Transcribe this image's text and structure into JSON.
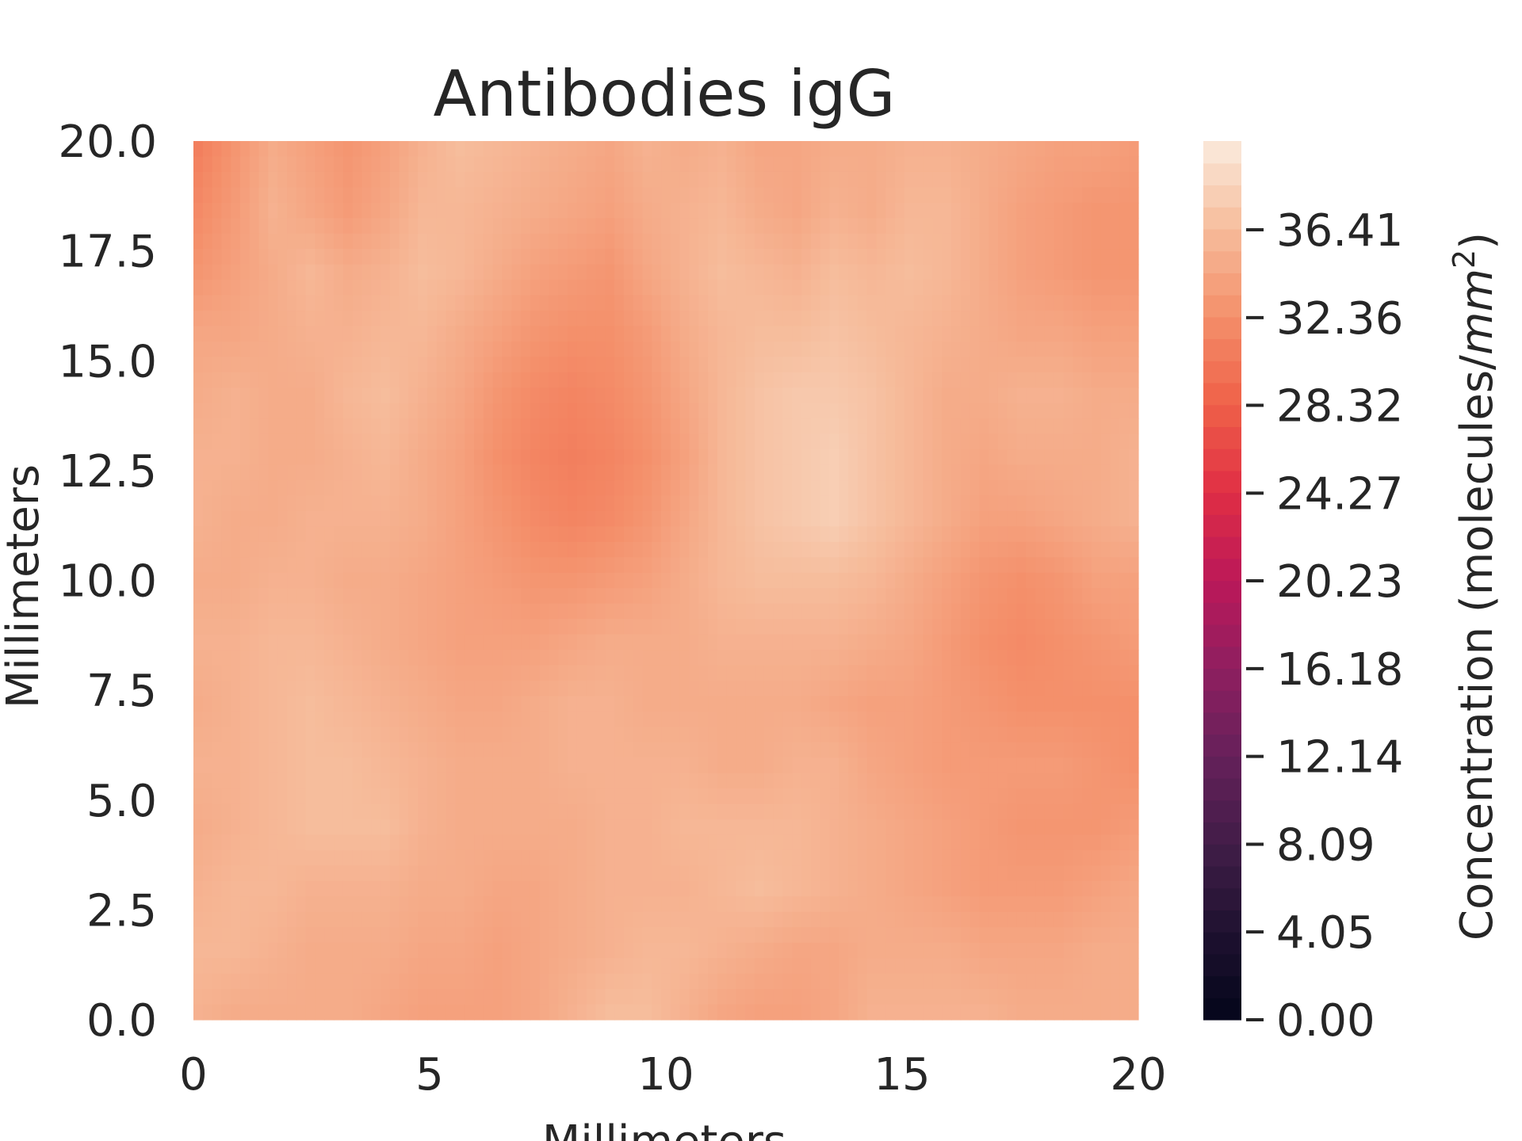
{
  "chart_data": {
    "type": "heatmap",
    "title": "Antibodies igG",
    "xlabel": "Millimeters",
    "ylabel": "Millimeters",
    "xlim": [
      0,
      20
    ],
    "ylim": [
      0,
      20
    ],
    "x_ticks": [
      "0",
      "5",
      "10",
      "15",
      "20"
    ],
    "y_ticks": [
      "0.0",
      "2.5",
      "5.0",
      "7.5",
      "10.0",
      "12.5",
      "15.0",
      "17.5",
      "20.0"
    ],
    "colorbar": {
      "label": "Concentration (molecules/mm²)",
      "label_plain": "Concentration (molecules/",
      "label_unit": "mm",
      "label_exp": "2",
      "label_close": ")",
      "range": [
        0,
        40.5
      ],
      "ticks": [
        "0.00",
        "4.05",
        "8.09",
        "12.14",
        "16.18",
        "20.23",
        "24.27",
        "28.32",
        "32.36",
        "36.41"
      ],
      "colormap": "rocket"
    },
    "grid_step": 2.5,
    "z_rows_from_top": [
      [
        31.0,
        33.0,
        35.0,
        34.0,
        33.0,
        34.0,
        35.5,
        36.5,
        36.0,
        35.5,
        35.0,
        34.5,
        35.5,
        35.0,
        35.5,
        34.5,
        34.5,
        35.0,
        35.0,
        35.5,
        35.5,
        35.0,
        34.5,
        34.0,
        34.0,
        33.5
      ],
      [
        32.0,
        33.5,
        35.5,
        34.5,
        33.5,
        34.5,
        36.0,
        36.0,
        35.5,
        35.0,
        34.5,
        34.0,
        35.0,
        35.5,
        36.0,
        35.0,
        34.5,
        35.5,
        35.0,
        36.0,
        36.0,
        35.0,
        34.0,
        33.5,
        33.0,
        33.0
      ],
      [
        33.0,
        34.0,
        35.0,
        36.0,
        35.0,
        35.5,
        36.5,
        36.0,
        35.0,
        34.0,
        33.5,
        33.0,
        34.5,
        35.5,
        36.5,
        36.0,
        35.5,
        36.5,
        36.0,
        36.5,
        36.0,
        35.0,
        34.0,
        33.5,
        33.0,
        33.0
      ],
      [
        34.5,
        34.5,
        35.0,
        35.5,
        35.5,
        36.0,
        36.0,
        35.0,
        34.0,
        33.0,
        32.5,
        32.5,
        33.5,
        35.0,
        36.0,
        36.5,
        36.5,
        37.0,
        36.5,
        36.0,
        35.5,
        35.0,
        34.5,
        34.5,
        34.0,
        34.0
      ],
      [
        35.0,
        35.5,
        35.0,
        35.0,
        36.0,
        36.5,
        35.5,
        34.5,
        33.0,
        32.0,
        31.5,
        32.0,
        33.0,
        34.5,
        36.0,
        37.0,
        37.5,
        37.5,
        37.0,
        36.0,
        35.0,
        35.0,
        35.5,
        35.5,
        35.0,
        35.0
      ],
      [
        35.5,
        35.5,
        35.0,
        35.0,
        35.5,
        36.0,
        35.0,
        34.0,
        32.5,
        31.5,
        31.0,
        31.5,
        32.5,
        34.0,
        36.0,
        37.0,
        37.5,
        38.0,
        37.0,
        36.0,
        35.0,
        34.5,
        35.0,
        35.0,
        35.0,
        35.5
      ],
      [
        35.5,
        35.0,
        35.0,
        35.5,
        35.5,
        35.5,
        35.0,
        34.0,
        33.0,
        32.0,
        31.5,
        32.0,
        33.0,
        34.5,
        36.0,
        37.0,
        37.5,
        38.0,
        37.0,
        36.0,
        35.0,
        34.0,
        34.0,
        34.5,
        35.0,
        35.5
      ],
      [
        35.0,
        35.0,
        35.5,
        35.5,
        35.0,
        35.0,
        34.5,
        34.0,
        33.5,
        33.0,
        33.0,
        33.5,
        34.0,
        35.0,
        36.0,
        36.5,
        36.5,
        36.5,
        36.0,
        35.0,
        34.0,
        33.0,
        32.5,
        33.0,
        34.0,
        34.0
      ],
      [
        35.5,
        35.5,
        36.0,
        36.0,
        35.5,
        35.0,
        34.5,
        34.0,
        34.0,
        34.0,
        34.5,
        35.0,
        35.0,
        35.0,
        35.5,
        35.5,
        35.5,
        35.5,
        35.0,
        34.5,
        33.5,
        32.5,
        32.0,
        32.5,
        33.0,
        33.5
      ],
      [
        35.0,
        35.5,
        36.0,
        36.5,
        36.0,
        35.5,
        35.0,
        34.5,
        34.5,
        35.0,
        35.5,
        35.5,
        35.0,
        35.0,
        35.0,
        35.0,
        35.0,
        34.5,
        34.0,
        34.0,
        33.5,
        33.0,
        32.5,
        32.5,
        32.5,
        32.5
      ],
      [
        35.5,
        35.5,
        36.0,
        36.5,
        36.5,
        36.0,
        35.5,
        35.0,
        35.0,
        35.0,
        35.5,
        35.5,
        35.5,
        35.5,
        35.0,
        35.0,
        35.5,
        35.5,
        34.5,
        34.0,
        33.5,
        33.5,
        33.5,
        33.5,
        33.0,
        32.5
      ],
      [
        35.0,
        35.5,
        36.0,
        36.5,
        36.5,
        36.5,
        35.5,
        35.0,
        35.0,
        35.0,
        35.0,
        35.5,
        35.5,
        36.0,
        36.0,
        36.0,
        36.0,
        35.5,
        35.0,
        34.5,
        34.0,
        33.5,
        33.0,
        33.0,
        33.0,
        33.5
      ],
      [
        35.5,
        36.0,
        36.0,
        35.5,
        35.5,
        35.5,
        35.0,
        35.0,
        34.5,
        34.5,
        35.0,
        35.5,
        35.5,
        35.5,
        36.0,
        36.5,
        36.0,
        35.5,
        35.0,
        34.5,
        34.0,
        33.5,
        33.5,
        33.5,
        34.0,
        34.5
      ],
      [
        36.0,
        36.0,
        35.5,
        35.0,
        35.0,
        35.0,
        34.5,
        34.5,
        34.0,
        34.5,
        35.0,
        35.5,
        36.0,
        36.0,
        35.5,
        35.0,
        34.5,
        34.5,
        35.0,
        35.0,
        35.0,
        34.5,
        34.5,
        34.5,
        35.0,
        35.0
      ],
      [
        35.5,
        35.0,
        35.0,
        35.0,
        35.0,
        34.5,
        34.0,
        34.0,
        34.0,
        34.5,
        35.5,
        36.5,
        36.5,
        35.5,
        34.5,
        34.0,
        34.0,
        34.5,
        35.5,
        35.5,
        35.5,
        35.5,
        35.0,
        35.0,
        35.0,
        35.0
      ]
    ]
  }
}
